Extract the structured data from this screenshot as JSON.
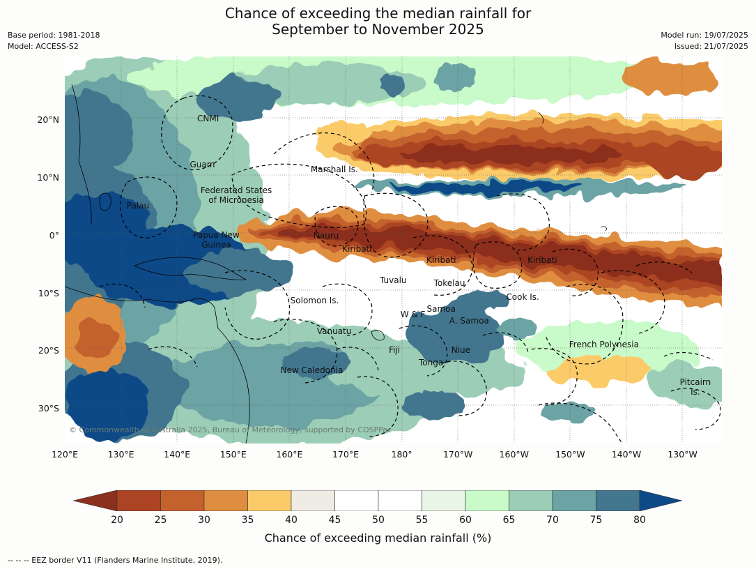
{
  "title": {
    "line1": "Chance of exceeding the median rainfall for",
    "line2": "September to November 2025"
  },
  "meta_left": {
    "base_period": "Base period: 1981-2018",
    "model": "Model: ACCESS-S2"
  },
  "meta_right": {
    "model_run": "Model run: 19/07/2025",
    "issued": "Issued: 21/07/2025"
  },
  "map": {
    "lon_range": [
      120,
      237
    ],
    "lat_range": [
      -36,
      31
    ],
    "lat_labels": [
      {
        "lat": 20,
        "label": "20°N"
      },
      {
        "lat": 10,
        "label": "10°N"
      },
      {
        "lat": 0,
        "label": "0°"
      },
      {
        "lat": -10,
        "label": "10°S"
      },
      {
        "lat": -20,
        "label": "20°S"
      },
      {
        "lat": -30,
        "label": "30°S"
      }
    ],
    "lon_labels": [
      {
        "lon": 120,
        "label": "120°E"
      },
      {
        "lon": 130,
        "label": "130°E"
      },
      {
        "lon": 140,
        "label": "140°E"
      },
      {
        "lon": 150,
        "label": "150°E"
      },
      {
        "lon": 160,
        "label": "160°E"
      },
      {
        "lon": 170,
        "label": "170°E"
      },
      {
        "lon": 180,
        "label": "180°"
      },
      {
        "lon": 190,
        "label": "170°W"
      },
      {
        "lon": 200,
        "label": "160°W"
      },
      {
        "lon": 210,
        "label": "150°W"
      },
      {
        "lon": 220,
        "label": "140°W"
      },
      {
        "lon": 230,
        "label": "130°W"
      }
    ],
    "regions": [
      {
        "lines": [
          "CNMI"
        ],
        "lon": 145.5,
        "lat": 20.2
      },
      {
        "lines": [
          "Guam"
        ],
        "lon": 144.5,
        "lat": 12.3
      },
      {
        "lines": [
          "Marshall Is."
        ],
        "lon": 168,
        "lat": 11.5
      },
      {
        "lines": [
          "Federated States",
          "of Micronesia"
        ],
        "lon": 150.5,
        "lat": 7.0
      },
      {
        "lines": [
          "Palau"
        ],
        "lon": 133,
        "lat": 5.2
      },
      {
        "lines": [
          "Papua New",
          "Guinea"
        ],
        "lon": 147,
        "lat": -0.7
      },
      {
        "lines": [
          "Nauru"
        ],
        "lon": 166.5,
        "lat": 0
      },
      {
        "lines": [
          "Kiribati"
        ],
        "lon": 172,
        "lat": -2.3
      },
      {
        "lines": [
          "Kiribati"
        ],
        "lon": 187,
        "lat": -4.3
      },
      {
        "lines": [
          "Kiribati"
        ],
        "lon": 205,
        "lat": -4.3
      },
      {
        "lines": [
          "Tuvalu"
        ],
        "lon": 178.5,
        "lat": -7.8
      },
      {
        "lines": [
          "Tokelau"
        ],
        "lon": 188.5,
        "lat": -8.2
      },
      {
        "lines": [
          "Cook Is."
        ],
        "lon": 201.5,
        "lat": -10.7
      },
      {
        "lines": [
          "Solomon Is."
        ],
        "lon": 164.5,
        "lat": -11.2
      },
      {
        "lines": [
          "Samoa"
        ],
        "lon": 187,
        "lat": -12.7
      },
      {
        "lines": [
          "W & F"
        ],
        "lon": 182,
        "lat": -13.7
      },
      {
        "lines": [
          "A. Samoa"
        ],
        "lon": 192,
        "lat": -14.8
      },
      {
        "lines": [
          "Vanuatu"
        ],
        "lon": 168,
        "lat": -16.6
      },
      {
        "lines": [
          "French Polynesia"
        ],
        "lon": 216,
        "lat": -18.8
      },
      {
        "lines": [
          "Fiji"
        ],
        "lon": 178.7,
        "lat": -19.8
      },
      {
        "lines": [
          "Niue"
        ],
        "lon": 190.5,
        "lat": -19.8
      },
      {
        "lines": [
          "Tonga"
        ],
        "lon": 185.2,
        "lat": -22.0
      },
      {
        "lines": [
          "New Caledonia"
        ],
        "lon": 164,
        "lat": -23.3
      },
      {
        "lines": [
          "Pitcairn",
          "Is."
        ],
        "lon": 232.3,
        "lat": -26.2
      }
    ]
  },
  "copyright": "© Commonwealth of Australia 2025, Bureau of Meteorology, supported by COSPPac",
  "colorbar": {
    "ticks": [
      "20",
      "25",
      "30",
      "35",
      "40",
      "45",
      "50",
      "55",
      "60",
      "65",
      "70",
      "75",
      "80"
    ],
    "under_color": "#8c2f1d",
    "over_color": "#0e4a87",
    "colors": [
      "#ac4424",
      "#c4622e",
      "#df8e41",
      "#fbcb6a",
      "#efece6",
      "#ffffff",
      "#ffffff",
      "#e8f5e7",
      "#c9fac9",
      "#9ccdb6",
      "#6ca3a4",
      "#43768f"
    ],
    "label": "Chance of exceeding median rainfall (%)"
  },
  "footer": "--  --  -- EEZ border V11 (Flanders Marine Institute, 2019)."
}
